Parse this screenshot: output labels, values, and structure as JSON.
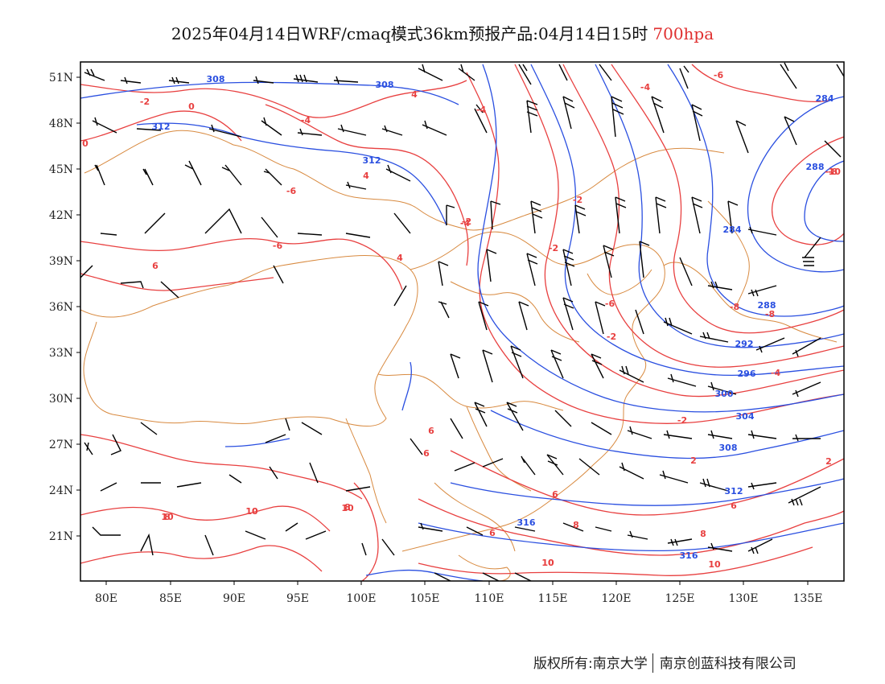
{
  "header": {
    "title": "2025年04月14日WRF/cmaq模式36km预报产品:04月14日15时",
    "level": "700hpa"
  },
  "axes": {
    "lon_labels": [
      "80E",
      "85E",
      "90E",
      "95E",
      "100E",
      "105E",
      "110E",
      "115E",
      "120E",
      "125E",
      "130E",
      "135E"
    ],
    "lat_labels": [
      "51N",
      "48N",
      "45N",
      "42N",
      "39N",
      "36N",
      "33N",
      "30N",
      "27N",
      "24N",
      "21N"
    ]
  },
  "colors": {
    "height_contour": "#2a4fe0",
    "temperature_contour": "#e84040",
    "boundary": "#d88a40",
    "wind_barb": "#000000",
    "level_text": "#e03030"
  },
  "height_labels": [
    "308",
    "308",
    "312",
    "312",
    "284",
    "288",
    "284",
    "288",
    "292",
    "296",
    "300",
    "304",
    "308",
    "312",
    "316",
    "316"
  ],
  "temperature_labels": [
    "-2",
    "0",
    "0",
    "-4",
    "-4",
    "-6",
    "-8",
    "-4",
    "-4",
    "-2",
    "-2",
    "-2",
    "-6",
    "-8",
    "-8",
    "-10",
    "-4",
    "-6",
    "-6",
    "6",
    "-2",
    "2",
    "2",
    "6",
    "8",
    "6",
    "8",
    "10",
    "10",
    "10",
    "10",
    "10",
    "-2",
    "4",
    "4",
    "4",
    "6",
    "6",
    "6",
    "8",
    "8",
    "10",
    "10"
  ],
  "footer": {
    "copyright": "版权所有:南京大学",
    "company": "南京创蓝科技有限公司"
  }
}
